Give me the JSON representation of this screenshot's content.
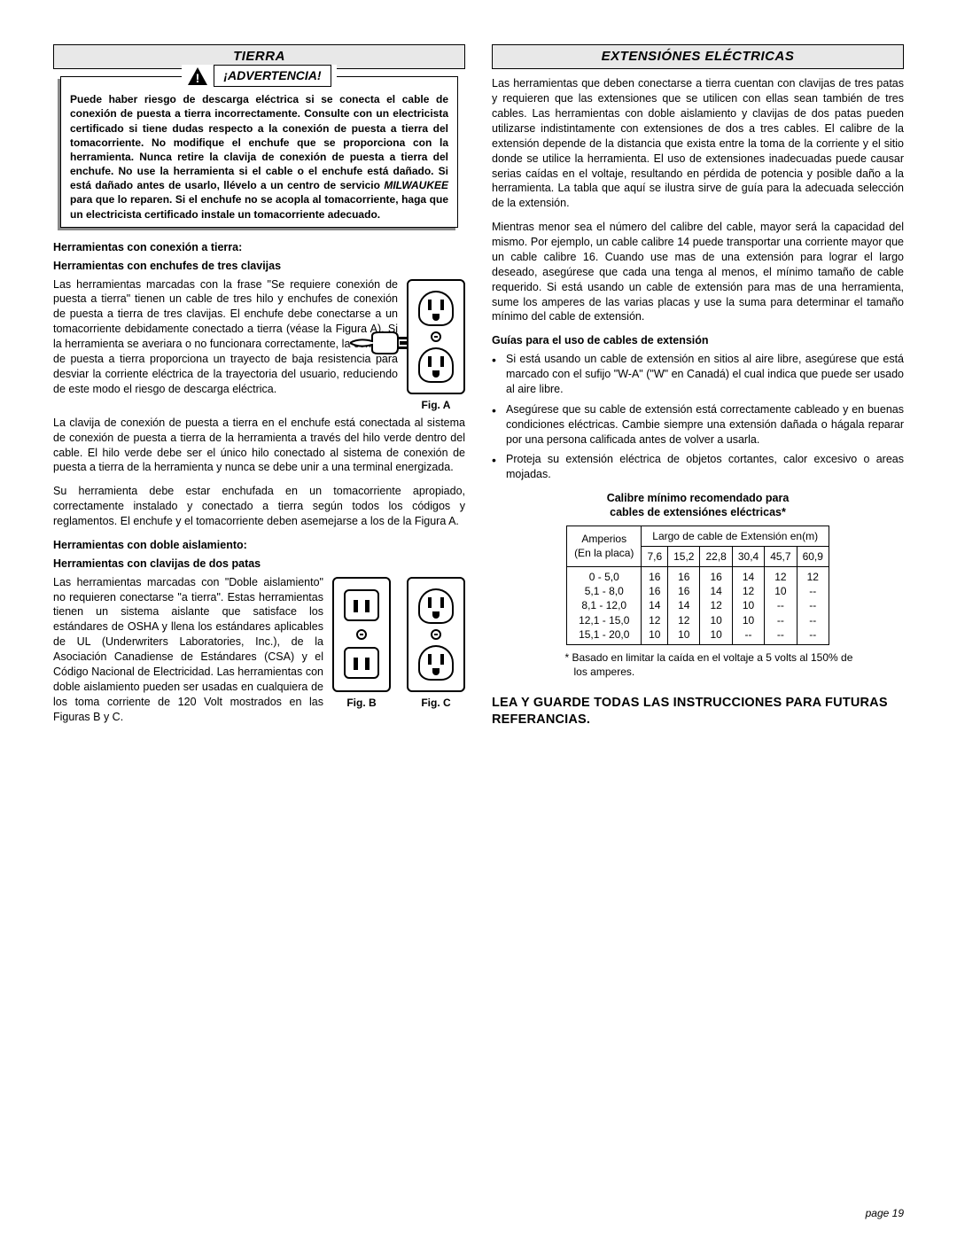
{
  "left": {
    "header": "TIERRA",
    "warning_label": "¡ADVERTENCIA!",
    "warning_body_pre": "Puede haber riesgo de descarga eléctrica si se conecta el cable de conexión de puesta a tierra incorrectamente. Consulte con un electricista certificado si tiene dudas respecto a la conexión de puesta a tierra del tomacorriente. No modifique el enchufe que se proporciona con la herramienta. Nunca retire la clavija de conexión de puesta a tierra del enchufe. No use la herramienta si el cable o el enchufe está dañado. Si está dañado antes de usarlo, llévelo a un centro de servicio ",
    "warning_brand": "MILWAUKEE",
    "warning_body_post": " para que lo reparen. Si el enchufe no se acopla al tomacorriente, haga que un electricista certificado instale un tomacorriente adecuado.",
    "sub1a": "Herramientas con conexión a tierra:",
    "sub1b": "Herramientas con enchufes de tres clavijas",
    "p1": "Las herramientas marcadas con la frase \"Se requiere conexión de puesta a tierra\" tienen un cable de tres hilo y enchufes de conexión de puesta a tierra de tres clavijas. El enchufe debe conectarse a un tomacorriente debidamente conectado a tierra (véase la Figura A). Si la herramienta se averiara o no funcionara correctamente, la conexión de puesta a tierra proporciona un trayecto de baja resistencia para desviar la corriente eléctrica de la trayectoria del usuario, reduciendo de este modo el riesgo de descarga eléctrica.",
    "p2": "La clavija de conexión de puesta a tierra en el enchufe está conectada al sistema de conexión de puesta a tierra de la herramienta a través del hilo verde dentro del cable. El hilo verde debe ser el único hilo conectado al sistema de conexión de puesta a tierra de la herramienta y nunca se debe unir a una terminal energizada.",
    "p3": "Su herramienta debe estar enchufada en un tomacorriente apropiado, correctamente instalado y conectado a tierra según todos los códigos y reglamentos. El enchufe y el tomacorriente deben asemejarse a los de la Figura A.",
    "sub2a": "Herramientas con doble aislamiento:",
    "sub2b": "Herramientas con clavijas de dos patas",
    "p4": "Las herramientas marcadas con \"Doble aislamiento\" no requieren conectarse \"a tierra\". Estas herramientas tienen un sistema aislante que satisface los estándares de OSHA y llena los estándares aplicables de UL (Underwriters Laboratories, Inc.), de la Asociación Canadiense de Estándares (CSA) y el Código Nacional de Electricidad. Las herramientas con doble aislamiento pueden ser usadas en cualquiera de los toma corriente de 120 Volt mostrados en las Figuras B y C.",
    "figA": "Fig. A",
    "figB": "Fig. B",
    "figC": "Fig. C"
  },
  "right": {
    "header": "EXTENSIÓNES ELÉCTRICAS",
    "p1": "Las herramientas que deben conectarse a tierra cuentan con clavijas de tres patas y requieren que las extensiones que se utilicen con ellas sean también de tres cables. Las herramientas con doble aislamiento y clavijas de dos patas pueden utilizarse indistintamente con extensiones de dos a tres cables. El calibre de la extensión depende de la distancia que exista entre la toma de la corriente y el sitio donde se utilice la herramienta. El uso de extensiones inadecuadas puede causar serias caídas en el voltaje, resultando en pérdida de potencia y posible daño a la herramienta. La tabla que aquí se ilustra sirve de guía para la adecuada selección de la extensión.",
    "p2": "Mientras menor sea el número del calibre del cable, mayor será la capacidad del mismo. Por ejemplo, un cable calibre 14 puede transportar una corriente mayor que un cable calibre 16. Cuando use mas de una extensión para lograr el largo deseado, asegúrese que cada una tenga al menos, el mínimo tamaño de cable requerido. Si está usando un cable de extensión para mas de una herramienta, sume los amperes de las varias placas y use la suma para determinar el tamaño mínimo del cable de extensión.",
    "sub": "Guías para el uso de cables de extensión",
    "b1": "Si está usando un cable de extensión en sitios al aire libre, asegúrese que está marcado con el sufijo \"W-A\" (\"W\" en Canadá) el cual indica que puede ser usado al aire libre.",
    "b2": "Asegúrese que su cable de extensión está correctamente cableado y en buenas condiciones eléctricas. Cambie siempre una extensión dañada o hágala reparar por una persona calificada antes de volver a usarla.",
    "b3": "Proteja su extensión eléctrica de objetos cortantes, calor excesivo o areas mojadas.",
    "table_title1": "Calibre mínimo recomendado para",
    "table_title2": "cables de extensiónes eléctricas*",
    "table": {
      "col_label1": "Amperios",
      "col_label2": "(En la placa)",
      "span_header": "Largo de cable de Extensión en(m)",
      "lengths": [
        "7,6",
        "15,2",
        "22,8",
        "30,4",
        "45,7",
        "60,9"
      ],
      "rows": [
        {
          "range": "0 - 5,0",
          "v": [
            "16",
            "16",
            "16",
            "14",
            "12",
            "12"
          ]
        },
        {
          "range": "5,1 - 8,0",
          "v": [
            "16",
            "16",
            "14",
            "12",
            "10",
            "--"
          ]
        },
        {
          "range": "8,1 - 12,0",
          "v": [
            "14",
            "14",
            "12",
            "10",
            "--",
            "--"
          ]
        },
        {
          "range": "12,1 - 15,0",
          "v": [
            "12",
            "12",
            "10",
            "10",
            "--",
            "--"
          ]
        },
        {
          "range": "15,1 - 20,0",
          "v": [
            "10",
            "10",
            "10",
            "--",
            "--",
            "--"
          ]
        }
      ]
    },
    "footnote": "* Basado en limitar la caída en el voltaje a 5 volts al 150% de los amperes.",
    "instruction": "LEA Y GUARDE TODAS LAS INSTRUCCIONES PARA FUTURAS REFERANCIAS."
  },
  "page_num": "page 19"
}
